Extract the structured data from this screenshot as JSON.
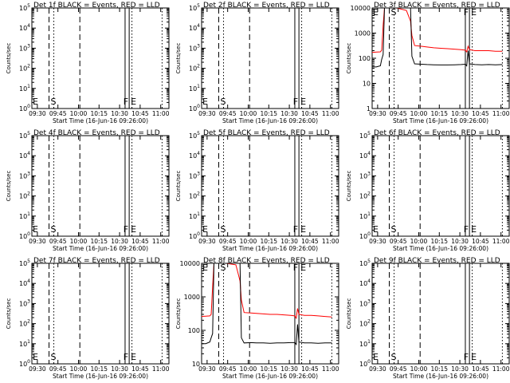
{
  "chart_data": [
    {
      "type": "line",
      "title": "Det 1f BLACK = Events, RED = LLD",
      "xlabel": "Start Time (16-Jun-16 09:26:00)",
      "ylabel": "Counts/sec",
      "yscale": "log",
      "y_tick_labels": [
        "10^0",
        "10^1",
        "10^2",
        "10^3",
        "10^4",
        "10^5"
      ],
      "x_tick_labels": [
        "09:30",
        "09:45",
        "10:00",
        "10:15",
        "10:30",
        "10:45",
        "11:00"
      ],
      "markers": [
        {
          "label": "E",
          "time": "09:30"
        },
        {
          "label": "S",
          "time": "09:38"
        },
        {
          "label": "F",
          "time": "10:36"
        },
        {
          "label": "E",
          "time": "10:39"
        }
      ],
      "series": []
    },
    {
      "type": "line",
      "title": "Det 2f BLACK = Events, RED = LLD",
      "xlabel": "Start Time (16-Jun-16 09:26:00)",
      "ylabel": "Counts/sec",
      "yscale": "log",
      "y_tick_labels": [
        "10^0",
        "10^1",
        "10^2",
        "10^3",
        "10^4",
        "10^5"
      ],
      "x_tick_labels": [
        "09:30",
        "09:45",
        "10:00",
        "10:15",
        "10:30",
        "10:45",
        "11:00"
      ],
      "markers": [
        {
          "label": "E",
          "time": "09:30"
        },
        {
          "label": "S",
          "time": "09:38"
        },
        {
          "label": "F",
          "time": "10:36"
        },
        {
          "label": "E",
          "time": "10:39"
        }
      ],
      "series": []
    },
    {
      "type": "line",
      "title": "Det 3f BLACK = Events, RED = LLD",
      "xlabel": "Start Time (16-Jun-16 09:26:00)",
      "ylabel": "Counts/sec",
      "yscale": "log",
      "y_tick_labels": [
        "1",
        "10",
        "100",
        "1000",
        "10000"
      ],
      "x_tick_labels": [
        "09:30",
        "09:45",
        "10:00",
        "10:15",
        "10:30",
        "10:45",
        "11:00"
      ],
      "markers": [
        {
          "label": "E",
          "time": "09:30"
        },
        {
          "label": "S",
          "time": "09:38"
        },
        {
          "label": "F",
          "time": "10:36"
        },
        {
          "label": "E",
          "time": "10:39"
        }
      ],
      "series": [
        {
          "color": "#ff0000",
          "x": [
            0,
            3,
            6,
            7,
            8,
            9,
            12,
            15,
            18,
            25,
            28,
            29,
            31,
            36,
            40,
            45,
            50,
            55,
            60,
            65,
            68,
            69,
            70,
            71,
            75,
            80,
            85,
            90,
            95
          ],
          "y": [
            170,
            175,
            180,
            210,
            2000,
            11000,
            11000,
            11000,
            11000,
            8000,
            3000,
            800,
            320,
            300,
            280,
            260,
            250,
            240,
            230,
            220,
            210,
            180,
            300,
            220,
            200,
            200,
            200,
            190,
            190
          ]
        },
        {
          "color": "#000000",
          "x": [
            0,
            3,
            6,
            7,
            8,
            9,
            28,
            29,
            31,
            36,
            40,
            45,
            50,
            55,
            60,
            65,
            68,
            69,
            70,
            71,
            75,
            80,
            85,
            90,
            95
          ],
          "y": [
            45,
            45,
            50,
            90,
            140,
            12000,
            12000,
            120,
            60,
            58,
            56,
            55,
            54,
            54,
            55,
            56,
            58,
            50,
            200,
            60,
            56,
            55,
            56,
            55,
            56
          ]
        }
      ]
    },
    {
      "type": "line",
      "title": "Det 4f BLACK = Events, RED = LLD",
      "xlabel": "Start Time (16-Jun-16 09:26:00)",
      "ylabel": "Counts/sec",
      "yscale": "log",
      "y_tick_labels": [
        "10^0",
        "10^1",
        "10^2",
        "10^3",
        "10^4",
        "10^5"
      ],
      "x_tick_labels": [
        "09:30",
        "09:45",
        "10:00",
        "10:15",
        "10:30",
        "10:45",
        "11:00"
      ],
      "markers": [
        {
          "label": "E",
          "time": "09:30"
        },
        {
          "label": "S",
          "time": "09:38"
        },
        {
          "label": "F",
          "time": "10:36"
        },
        {
          "label": "E",
          "time": "10:39"
        }
      ],
      "series": []
    },
    {
      "type": "line",
      "title": "Det 5f BLACK = Events, RED = LLD",
      "xlabel": "Start Time (16-Jun-16 09:26:00)",
      "ylabel": "Counts/sec",
      "yscale": "log",
      "y_tick_labels": [
        "10^0",
        "10^1",
        "10^2",
        "10^3",
        "10^4",
        "10^5"
      ],
      "x_tick_labels": [
        "09:30",
        "09:45",
        "10:00",
        "10:15",
        "10:30",
        "10:45",
        "11:00"
      ],
      "markers": [
        {
          "label": "E",
          "time": "09:30"
        },
        {
          "label": "S",
          "time": "09:38"
        },
        {
          "label": "F",
          "time": "10:36"
        },
        {
          "label": "E",
          "time": "10:39"
        }
      ],
      "series": []
    },
    {
      "type": "line",
      "title": "Det 6f BLACK = Events, RED = LLD",
      "xlabel": "Start Time (16-Jun-16 09:26:00)",
      "ylabel": "Counts/sec",
      "yscale": "log",
      "y_tick_labels": [
        "10^0",
        "10^1",
        "10^2",
        "10^3",
        "10^4",
        "10^5"
      ],
      "x_tick_labels": [
        "09:30",
        "09:45",
        "10:00",
        "10:15",
        "10:30",
        "10:45",
        "11:00"
      ],
      "markers": [
        {
          "label": "E",
          "time": "09:30"
        },
        {
          "label": "S",
          "time": "09:38"
        },
        {
          "label": "F",
          "time": "10:36"
        },
        {
          "label": "E",
          "time": "10:39"
        }
      ],
      "series": []
    },
    {
      "type": "line",
      "title": "Det 7f BLACK = Events, RED = LLD",
      "xlabel": "Start Time (16-Jun-16 09:26:00)",
      "ylabel": "Counts/sec",
      "yscale": "log",
      "y_tick_labels": [
        "10^0",
        "10^1",
        "10^2",
        "10^3",
        "10^4",
        "10^5"
      ],
      "x_tick_labels": [
        "09:30",
        "09:45",
        "10:00",
        "10:15",
        "10:30",
        "10:45",
        "11:00"
      ],
      "markers": [
        {
          "label": "E",
          "time": "09:30"
        },
        {
          "label": "S",
          "time": "09:38"
        },
        {
          "label": "F",
          "time": "10:36"
        },
        {
          "label": "E",
          "time": "10:39"
        }
      ],
      "series": []
    },
    {
      "type": "line",
      "title": "Det 8f BLACK = Events, RED = LLD",
      "xlabel": "Start Time (16-Jun-16 09:26:00)",
      "ylabel": "Counts/sec",
      "yscale": "log",
      "y_tick_labels": [
        "10",
        "100",
        "1000",
        "10000"
      ],
      "x_tick_labels": [
        "09:30",
        "09:45",
        "10:00",
        "10:15",
        "10:30",
        "10:45",
        "11:00"
      ],
      "markers": [
        {
          "label": "E",
          "time": "09:30"
        },
        {
          "label": "S",
          "time": "09:38"
        },
        {
          "label": "F",
          "time": "10:36"
        },
        {
          "label": "E",
          "time": "10:39"
        }
      ],
      "series": [
        {
          "color": "#ff0000",
          "x": [
            0,
            3,
            6,
            7,
            8,
            9,
            12,
            15,
            18,
            25,
            28,
            29,
            31,
            36,
            40,
            45,
            50,
            55,
            60,
            65,
            68,
            69,
            70,
            71,
            75,
            80,
            85,
            90,
            95
          ],
          "y": [
            260,
            265,
            270,
            300,
            2000,
            12000,
            12000,
            12000,
            12000,
            9000,
            3000,
            800,
            340,
            330,
            320,
            310,
            300,
            300,
            290,
            280,
            270,
            230,
            450,
            300,
            280,
            280,
            270,
            260,
            250
          ]
        },
        {
          "color": "#000000",
          "x": [
            0,
            3,
            6,
            7,
            8,
            9,
            28,
            29,
            31,
            36,
            40,
            45,
            50,
            55,
            60,
            65,
            68,
            69,
            70,
            71,
            75,
            80,
            85,
            90,
            95
          ],
          "y": [
            40,
            40,
            45,
            60,
            80,
            12000,
            12000,
            60,
            42,
            43,
            42,
            42,
            41,
            42,
            42,
            43,
            43,
            38,
            150,
            45,
            42,
            42,
            41,
            42,
            42
          ]
        }
      ]
    },
    {
      "type": "line",
      "title": "Det 9f BLACK = Events, RED = LLD",
      "xlabel": "Start Time (16-Jun-16 09:26:00)",
      "ylabel": "Counts/sec",
      "yscale": "log",
      "y_tick_labels": [
        "10^0",
        "10^1",
        "10^2",
        "10^3",
        "10^4",
        "10^5"
      ],
      "x_tick_labels": [
        "09:30",
        "09:45",
        "10:00",
        "10:15",
        "10:30",
        "10:45",
        "11:00"
      ],
      "markers": [
        {
          "label": "E",
          "time": "09:30"
        },
        {
          "label": "S",
          "time": "09:38"
        },
        {
          "label": "F",
          "time": "10:36"
        },
        {
          "label": "E",
          "time": "10:39"
        }
      ],
      "series": []
    }
  ]
}
